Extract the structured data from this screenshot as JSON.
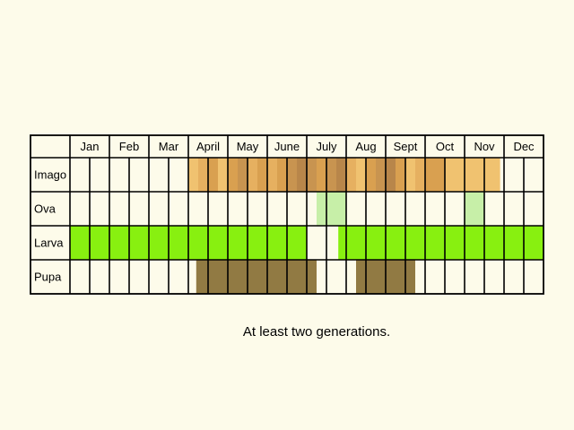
{
  "months": [
    "Jan",
    "Feb",
    "Mar",
    "April",
    "May",
    "June",
    "July",
    "Aug",
    "Sept",
    "Oct",
    "Nov",
    "Dec"
  ],
  "caption": "At least two generations.",
  "stages": [
    {
      "label": "Imago",
      "periods": [
        {
          "from_month": 4.0,
          "to_month": 4.25,
          "color": "#f0c270"
        },
        {
          "from_month": 4.25,
          "to_month": 4.5,
          "color": "#e6b060"
        },
        {
          "from_month": 4.5,
          "to_month": 4.75,
          "color": "#d9a050"
        },
        {
          "from_month": 4.75,
          "to_month": 5.0,
          "color": "#f0c270"
        },
        {
          "from_month": 5.0,
          "to_month": 5.25,
          "color": "#d9a050"
        },
        {
          "from_month": 5.25,
          "to_month": 5.5,
          "color": "#c89450"
        },
        {
          "from_month": 5.5,
          "to_month": 5.75,
          "color": "#e6b060"
        },
        {
          "from_month": 5.75,
          "to_month": 6.0,
          "color": "#d9a050"
        },
        {
          "from_month": 6.0,
          "to_month": 6.25,
          "color": "#e6b060"
        },
        {
          "from_month": 6.25,
          "to_month": 6.5,
          "color": "#d9a050"
        },
        {
          "from_month": 6.5,
          "to_month": 6.75,
          "color": "#c89450"
        },
        {
          "from_month": 6.75,
          "to_month": 7.0,
          "color": "#b8864a"
        },
        {
          "from_month": 7.0,
          "to_month": 7.25,
          "color": "#c89450"
        },
        {
          "from_month": 7.25,
          "to_month": 7.5,
          "color": "#d9a050"
        },
        {
          "from_month": 7.5,
          "to_month": 7.75,
          "color": "#c89450"
        },
        {
          "from_month": 7.75,
          "to_month": 8.0,
          "color": "#b8864a"
        },
        {
          "from_month": 8.0,
          "to_month": 8.25,
          "color": "#e6b060"
        },
        {
          "from_month": 8.25,
          "to_month": 8.5,
          "color": "#f0c270"
        },
        {
          "from_month": 8.5,
          "to_month": 8.75,
          "color": "#d9a050"
        },
        {
          "from_month": 8.75,
          "to_month": 9.0,
          "color": "#c89450"
        },
        {
          "from_month": 9.0,
          "to_month": 9.25,
          "color": "#b8864a"
        },
        {
          "from_month": 9.25,
          "to_month": 9.5,
          "color": "#d9a050"
        },
        {
          "from_month": 9.5,
          "to_month": 9.75,
          "color": "#f0c270"
        },
        {
          "from_month": 9.75,
          "to_month": 10.0,
          "color": "#e6b060"
        },
        {
          "from_month": 10.0,
          "to_month": 10.25,
          "color": "#d9a050"
        },
        {
          "from_month": 10.25,
          "to_month": 10.5,
          "color": "#d9a050"
        },
        {
          "from_month": 10.5,
          "to_month": 10.75,
          "color": "#f0c270"
        },
        {
          "from_month": 10.75,
          "to_month": 11.0,
          "color": "#f0c270"
        },
        {
          "from_month": 11.0,
          "to_month": 11.25,
          "color": "#f0c270"
        },
        {
          "from_month": 11.25,
          "to_month": 11.5,
          "color": "#f0c270"
        },
        {
          "from_month": 11.5,
          "to_month": 11.75,
          "color": "#f0c270"
        },
        {
          "from_month": 11.75,
          "to_month": 11.9,
          "color": "#f0c270"
        }
      ]
    },
    {
      "label": "Ova",
      "periods": [
        {
          "from_month": 7.25,
          "to_month": 8.0,
          "color": "#c7efa8"
        },
        {
          "from_month": 11.0,
          "to_month": 11.5,
          "color": "#c7efa8"
        }
      ]
    },
    {
      "label": "Larva",
      "periods": [
        {
          "from_month": 1.0,
          "to_month": 7.0,
          "color": "#88f010"
        },
        {
          "from_month": 7.8,
          "to_month": 13.0,
          "color": "#88f010"
        }
      ]
    },
    {
      "label": "Pupa",
      "periods": [
        {
          "from_month": 4.2,
          "to_month": 7.25,
          "color": "#917a43"
        },
        {
          "from_month": 8.25,
          "to_month": 9.75,
          "color": "#917a43"
        }
      ]
    }
  ]
}
